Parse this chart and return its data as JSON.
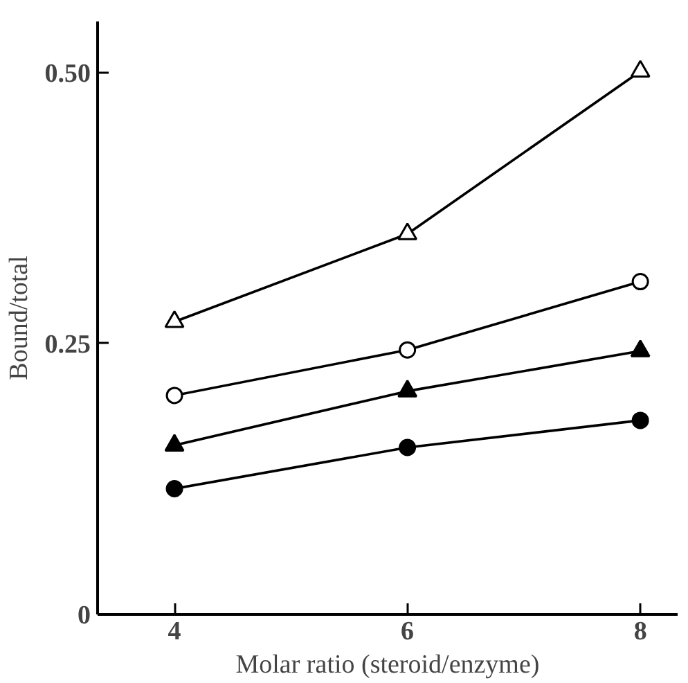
{
  "chart_data": {
    "type": "line",
    "xlabel": "Molar ratio (steroid/enzyme)",
    "ylabel": "Bound/total",
    "x": [
      4,
      6,
      8
    ],
    "xlim": [
      3.34,
      8.32
    ],
    "xticks": [
      4,
      6,
      8
    ],
    "ylim": [
      0,
      0.547
    ],
    "yticks": [
      0,
      {
        "value": 0.25,
        "label": "0.25"
      },
      {
        "value": 0.5,
        "label": "0.50"
      }
    ],
    "grid": false,
    "line_style": "solid",
    "series": [
      {
        "color": "#000000",
        "marker": "triangle_open",
        "values": [
          0.27,
          0.351,
          0.501
        ]
      },
      {
        "color": "#000000",
        "marker": "circle_open",
        "values": [
          0.202,
          0.244,
          0.307
        ]
      },
      {
        "color": "#000000",
        "marker": "triangle",
        "values": [
          0.156,
          0.206,
          0.243
        ]
      },
      {
        "color": "#000000",
        "marker": "circle",
        "values": [
          0.116,
          0.154,
          0.179
        ]
      }
    ]
  }
}
